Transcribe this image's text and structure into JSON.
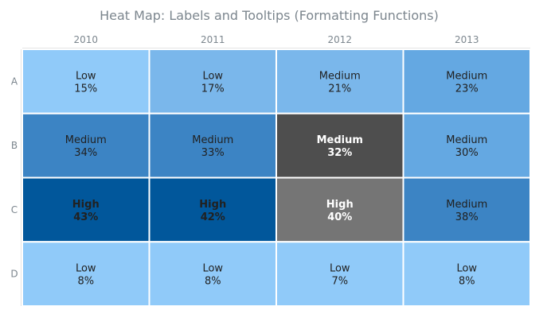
{
  "chart_data": {
    "type": "heatmap",
    "title": "Heat Map: Labels and Tooltips (Formatting Functions)",
    "columns": [
      "2010",
      "2011",
      "2012",
      "2013"
    ],
    "rows": [
      "A",
      "B",
      "C",
      "D"
    ],
    "cells": [
      [
        {
          "level": "Low",
          "value": "15%"
        },
        {
          "level": "Low",
          "value": "17%"
        },
        {
          "level": "Medium",
          "value": "21%"
        },
        {
          "level": "Medium",
          "value": "23%"
        }
      ],
      [
        {
          "level": "Medium",
          "value": "34%"
        },
        {
          "level": "Medium",
          "value": "33%"
        },
        {
          "level": "Medium",
          "value": "32%",
          "selected": true
        },
        {
          "level": "Medium",
          "value": "30%"
        }
      ],
      [
        {
          "level": "High",
          "value": "43%"
        },
        {
          "level": "High",
          "value": "42%"
        },
        {
          "level": "High",
          "value": "40%",
          "hovered": true
        },
        {
          "level": "Medium",
          "value": "38%"
        }
      ],
      [
        {
          "level": "Low",
          "value": "8%"
        },
        {
          "level": "Low",
          "value": "8%"
        },
        {
          "level": "Low",
          "value": "7%"
        },
        {
          "level": "Low",
          "value": "8%"
        }
      ]
    ],
    "colors": {
      "title": "#7c868e",
      "axis_text": "#7c868e",
      "axis_line": "#cacaca",
      "cell_border": "#ffffff",
      "text_default": "#212121",
      "text_high": "#212121",
      "text_state": "#ffffff",
      "selected_fill": "#4e4e4e",
      "hovered_fill": "#757575",
      "scale": [
        {
          "min": 0,
          "max": 16,
          "color": "#90caf9"
        },
        {
          "min": 16,
          "max": 22,
          "color": "#7ab7eb"
        },
        {
          "min": 22,
          "max": 31,
          "color": "#64a8e2"
        },
        {
          "min": 31,
          "max": 40,
          "color": "#3c84c4"
        },
        {
          "min": 40,
          "max": 100,
          "color": "#01579b"
        }
      ]
    }
  }
}
